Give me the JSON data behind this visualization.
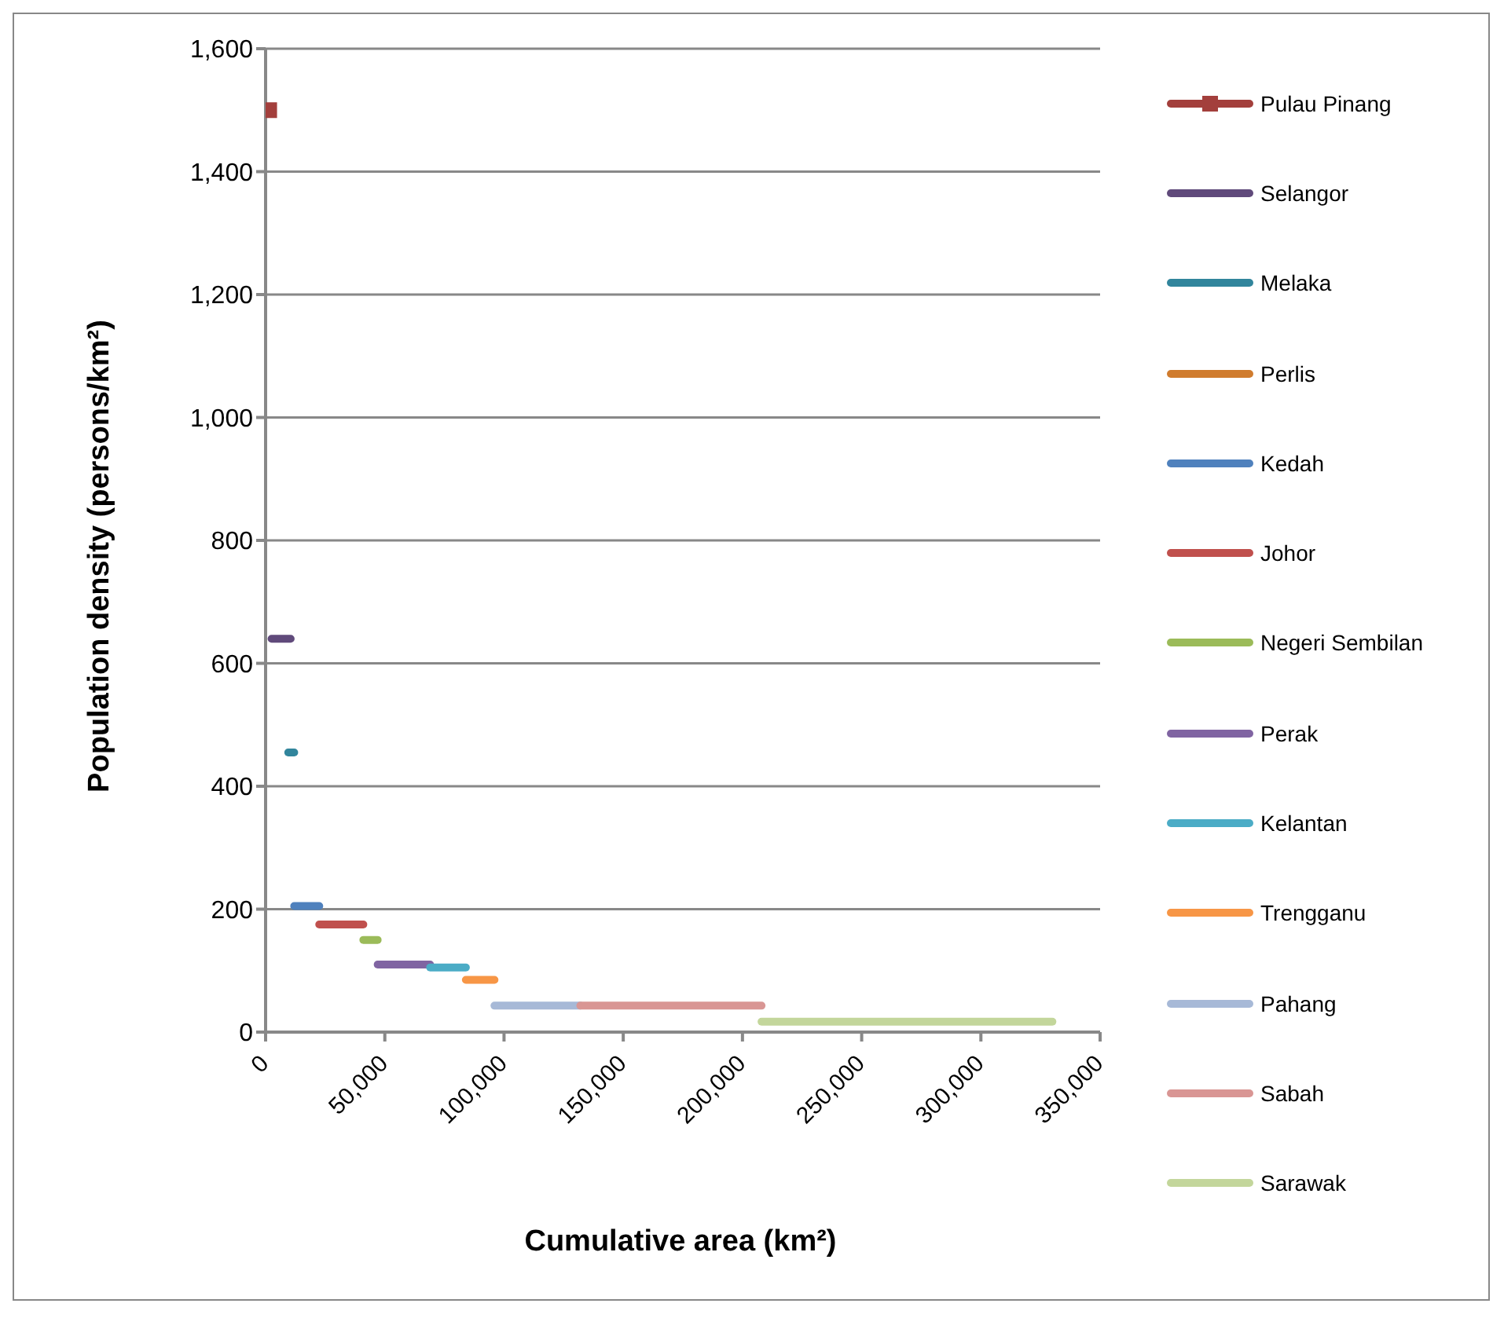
{
  "chart_data": {
    "type": "line",
    "xlabel": "Cumulative area (km²)",
    "ylabel": "Population density (persons/km²)",
    "xlim": [
      0,
      350000
    ],
    "xticks": [
      {
        "value": 0,
        "label": "0"
      },
      {
        "value": 50000,
        "label": "50,000"
      },
      {
        "value": 100000,
        "label": "100,000"
      },
      {
        "value": 150000,
        "label": "150,000"
      },
      {
        "value": 200000,
        "label": "200,000"
      },
      {
        "value": 250000,
        "label": "250,000"
      },
      {
        "value": 300000,
        "label": "300,000"
      },
      {
        "value": 350000,
        "label": "350,000"
      }
    ],
    "ylim": [
      0,
      1600
    ],
    "yticks": [
      {
        "value": 0,
        "label": "0"
      },
      {
        "value": 200,
        "label": "200"
      },
      {
        "value": 400,
        "label": "400"
      },
      {
        "value": 600,
        "label": "600"
      },
      {
        "value": 800,
        "label": "800"
      },
      {
        "value": 1000,
        "label": "1,000"
      },
      {
        "value": 1200,
        "label": "1,200"
      },
      {
        "value": 1400,
        "label": "1,400"
      },
      {
        "value": 1600,
        "label": "1,600"
      }
    ],
    "grid": "y",
    "legend": "right",
    "line_style": "solid",
    "marker": "none",
    "series": [
      {
        "name": "Pulau Pinang",
        "color": "#a33f3c",
        "x": [
          1500
        ],
        "values": [
          1500
        ],
        "marker": "square"
      },
      {
        "name": "Selangor",
        "color": "#604a7b",
        "x": [
          2500,
          10500
        ],
        "values": [
          640,
          640
        ]
      },
      {
        "name": "Melaka",
        "color": "#31859c",
        "x": [
          9500,
          12000
        ],
        "values": [
          455,
          455
        ]
      },
      {
        "name": "Perlis",
        "color": "#d07c2e"
      },
      {
        "name": "Kedah",
        "color": "#4f81bd",
        "x": [
          12000,
          22500
        ],
        "values": [
          205,
          205
        ]
      },
      {
        "name": "Johor",
        "color": "#c0504d",
        "x": [
          22500,
          41000
        ],
        "values": [
          175,
          175
        ]
      },
      {
        "name": "Negeri Sembilan",
        "color": "#9bbb59",
        "x": [
          41000,
          47000
        ],
        "values": [
          150,
          150
        ]
      },
      {
        "name": "Perak",
        "color": "#8064a2",
        "x": [
          47000,
          69000
        ],
        "values": [
          110,
          110
        ]
      },
      {
        "name": "Kelantan",
        "color": "#4bacc6",
        "x": [
          69000,
          84000
        ],
        "values": [
          105,
          105
        ]
      },
      {
        "name": "Trengganu",
        "color": "#f79646",
        "x": [
          84000,
          96000
        ],
        "values": [
          85,
          85
        ]
      },
      {
        "name": "Pahang",
        "color": "#a7b9d7",
        "x": [
          96000,
          132000
        ],
        "values": [
          43,
          43
        ]
      },
      {
        "name": "Sabah",
        "color": "#d99694",
        "x": [
          132000,
          208000
        ],
        "values": [
          43,
          43
        ]
      },
      {
        "name": "Sarawak",
        "color": "#c3d69b",
        "x": [
          208000,
          330000
        ],
        "values": [
          17,
          17
        ]
      }
    ]
  }
}
